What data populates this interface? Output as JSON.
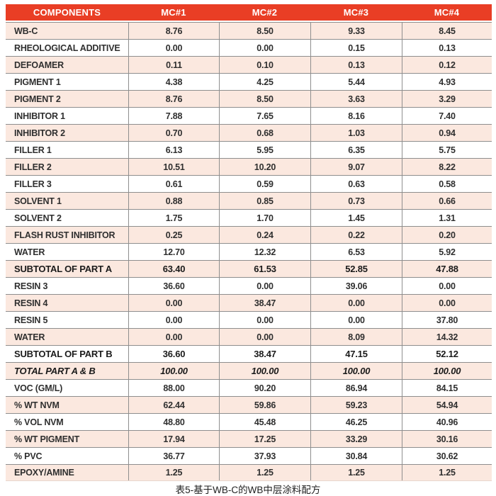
{
  "caption": "表5-基于WB-C的WB中层涂料配方",
  "colors": {
    "header_bg": "#e93e25",
    "header_text": "#ffffff",
    "row_alt_bg": "#fbe8df",
    "row_bg": "#ffffff",
    "border": "#8e8e8e",
    "text": "#2f2f2f"
  },
  "table": {
    "columns": [
      "COMPONENTS",
      "MC#1",
      "MC#2",
      "MC#3",
      "MC#4"
    ],
    "rows": [
      {
        "label": "WB-C",
        "values": [
          "8.76",
          "8.50",
          "9.33",
          "8.45"
        ],
        "emphasis": "normal"
      },
      {
        "label": "RHEOLOGICAL ADDITIVE",
        "values": [
          "0.00",
          "0.00",
          "0.15",
          "0.13"
        ],
        "emphasis": "normal"
      },
      {
        "label": "DEFOAMER",
        "values": [
          "0.11",
          "0.10",
          "0.13",
          "0.12"
        ],
        "emphasis": "normal"
      },
      {
        "label": "PIGMENT 1",
        "values": [
          "4.38",
          "4.25",
          "5.44",
          "4.93"
        ],
        "emphasis": "normal"
      },
      {
        "label": "PIGMENT 2",
        "values": [
          "8.76",
          "8.50",
          "3.63",
          "3.29"
        ],
        "emphasis": "normal"
      },
      {
        "label": "INHIBITOR 1",
        "values": [
          "7.88",
          "7.65",
          "8.16",
          "7.40"
        ],
        "emphasis": "normal"
      },
      {
        "label": "INHIBITOR 2",
        "values": [
          "0.70",
          "0.68",
          "1.03",
          "0.94"
        ],
        "emphasis": "normal"
      },
      {
        "label": "FILLER 1",
        "values": [
          "6.13",
          "5.95",
          "6.35",
          "5.75"
        ],
        "emphasis": "normal"
      },
      {
        "label": "FILLER 2",
        "values": [
          "10.51",
          "10.20",
          "9.07",
          "8.22"
        ],
        "emphasis": "normal"
      },
      {
        "label": "FILLER 3",
        "values": [
          "0.61",
          "0.59",
          "0.63",
          "0.58"
        ],
        "emphasis": "normal"
      },
      {
        "label": "SOLVENT 1",
        "values": [
          "0.88",
          "0.85",
          "0.73",
          "0.66"
        ],
        "emphasis": "normal"
      },
      {
        "label": "SOLVENT 2",
        "values": [
          "1.75",
          "1.70",
          "1.45",
          "1.31"
        ],
        "emphasis": "normal"
      },
      {
        "label": "FLASH RUST INHIBITOR",
        "values": [
          "0.25",
          "0.24",
          "0.22",
          "0.20"
        ],
        "emphasis": "normal"
      },
      {
        "label": "WATER",
        "values": [
          "12.70",
          "12.32",
          "6.53",
          "5.92"
        ],
        "emphasis": "normal"
      },
      {
        "label": "SUBTOTAL OF PART A",
        "values": [
          "63.40",
          "61.53",
          "52.85",
          "47.88"
        ],
        "emphasis": "bold"
      },
      {
        "label": "RESIN 3",
        "values": [
          "36.60",
          "0.00",
          "39.06",
          "0.00"
        ],
        "emphasis": "normal"
      },
      {
        "label": "RESIN 4",
        "values": [
          "0.00",
          "38.47",
          "0.00",
          "0.00"
        ],
        "emphasis": "normal"
      },
      {
        "label": "RESIN 5",
        "values": [
          "0.00",
          "0.00",
          "0.00",
          "37.80"
        ],
        "emphasis": "normal"
      },
      {
        "label": "WATER",
        "values": [
          "0.00",
          "0.00",
          "8.09",
          "14.32"
        ],
        "emphasis": "normal"
      },
      {
        "label": "SUBTOTAL OF PART B",
        "values": [
          "36.60",
          "38.47",
          "47.15",
          "52.12"
        ],
        "emphasis": "bold"
      },
      {
        "label": "TOTAL PART A & B",
        "values": [
          "100.00",
          "100.00",
          "100.00",
          "100.00"
        ],
        "emphasis": "bold-italic"
      },
      {
        "label": "VOC (GM/L)",
        "values": [
          "88.00",
          "90.20",
          "86.94",
          "84.15"
        ],
        "emphasis": "normal"
      },
      {
        "label": "% WT NVM",
        "values": [
          "62.44",
          "59.86",
          "59.23",
          "54.94"
        ],
        "emphasis": "normal"
      },
      {
        "label": "% VOL NVM",
        "values": [
          "48.80",
          "45.48",
          "46.25",
          "40.96"
        ],
        "emphasis": "normal"
      },
      {
        "label": "% WT PIGMENT",
        "values": [
          "17.94",
          "17.25",
          "33.29",
          "30.16"
        ],
        "emphasis": "normal"
      },
      {
        "label": "% PVC",
        "values": [
          "36.77",
          "37.93",
          "30.84",
          "30.62"
        ],
        "emphasis": "normal"
      },
      {
        "label": "EPOXY/AMINE",
        "values": [
          "1.25",
          "1.25",
          "1.25",
          "1.25"
        ],
        "emphasis": "normal"
      }
    ]
  }
}
